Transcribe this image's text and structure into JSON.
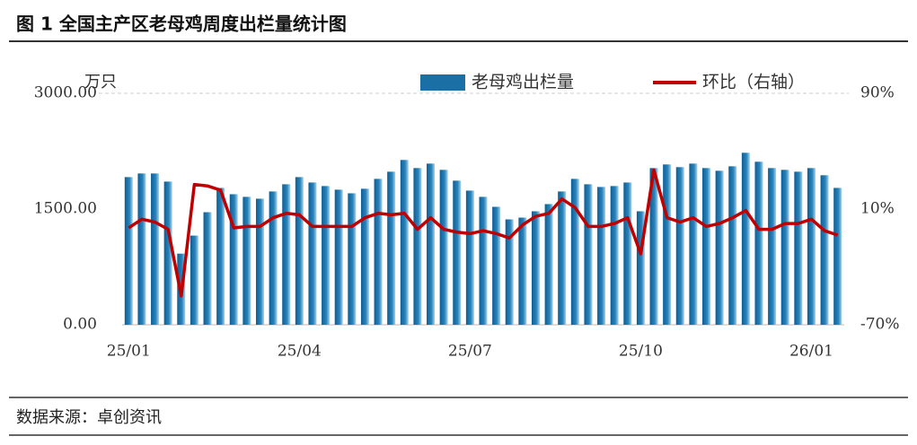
{
  "chart_data": {
    "type": "bar",
    "title": "图 1 全国主产区老母鸡周度出栏量统计图",
    "source": "数据来源：卓创资讯",
    "y_unit": "万只",
    "categories": [
      "25/01",
      null,
      null,
      null,
      null,
      null,
      null,
      null,
      null,
      null,
      null,
      null,
      null,
      "25/04",
      null,
      null,
      null,
      null,
      null,
      null,
      null,
      null,
      null,
      null,
      null,
      null,
      "25/07",
      null,
      null,
      null,
      null,
      null,
      null,
      null,
      null,
      null,
      null,
      null,
      null,
      "25/10",
      null,
      null,
      null,
      null,
      null,
      null,
      null,
      null,
      null,
      null,
      null,
      null,
      "26/01",
      null,
      null
    ],
    "series": [
      {
        "name": "老母鸡出栏量",
        "type": "bar",
        "color": "#1a6fa5",
        "values": [
          1914,
          1961,
          1961,
          1856,
          922,
          1156,
          1459,
          1774,
          1692,
          1658,
          1634,
          1728,
          1821,
          1914,
          1844,
          1798,
          1751,
          1704,
          1763,
          1891,
          1984,
          2136,
          2031,
          2089,
          2008,
          1868,
          1739,
          1658,
          1529,
          1366,
          1389,
          1471,
          1564,
          1728,
          1891,
          1821,
          1786,
          1798,
          1844,
          1471,
          2031,
          2078,
          2043,
          2089,
          2031,
          1996,
          2054,
          2229,
          2113,
          2031,
          2008,
          1984,
          2031,
          1938,
          1774
        ]
      },
      {
        "name": "环比（右轴）",
        "type": "line",
        "axis": "y2",
        "color": "#c00000",
        "values": [
          -3,
          3,
          1,
          -4,
          -50,
          27,
          26,
          23,
          -3,
          -2,
          -2,
          4,
          7,
          6,
          -2,
          -2,
          -2,
          -2,
          4,
          7,
          6,
          7,
          -4,
          4,
          -4,
          -6,
          -7,
          -5,
          -7,
          -10,
          -1,
          5,
          7,
          17,
          11,
          -2,
          -2,
          0,
          4,
          -21,
          37,
          4,
          1,
          4,
          -2,
          0,
          4,
          9,
          -4,
          -4,
          0,
          0,
          3,
          -5,
          -8
        ]
      }
    ],
    "ylim": [
      0,
      3000
    ],
    "yticks": [
      {
        "value": 0,
        "label": "0.00"
      },
      {
        "value": 1500,
        "label": "1500.00"
      },
      {
        "value": 3000,
        "label": "3000.00"
      }
    ],
    "y2lim": [
      -70,
      90
    ],
    "y2ticks": [
      {
        "value": -70,
        "label": "-70%"
      },
      {
        "value": 10,
        "label": "10%"
      },
      {
        "value": 90,
        "label": "90%"
      }
    ],
    "legend": "top"
  }
}
